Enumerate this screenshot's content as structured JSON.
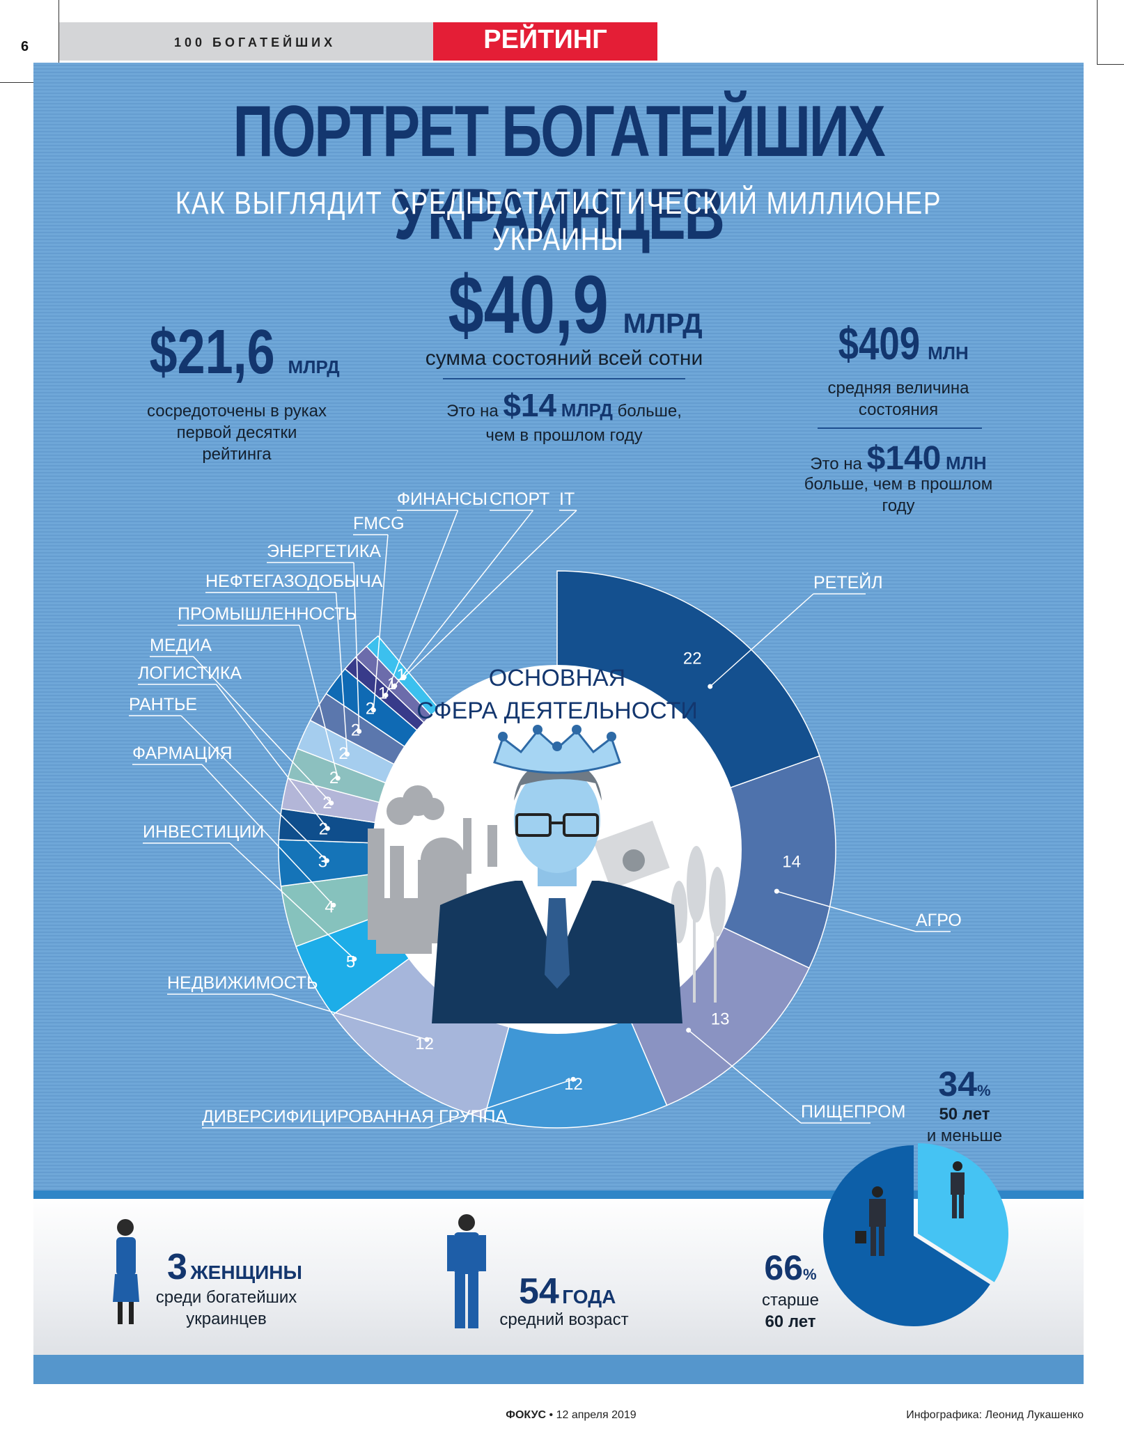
{
  "header": {
    "page_number": "6",
    "section": "100 БОГАТЕЙШИХ",
    "rubric": "РЕЙТИНГ"
  },
  "title": "ПОРТРЕТ БОГАТЕЙШИХ УКРАИНЦЕВ",
  "subtitle": "КАК ВЫГЛЯДИТ СРЕДНЕСТАТИСТИЧЕСКИЙ МИЛЛИОНЕР УКРАИНЫ",
  "stats": {
    "top10": {
      "value": "$21,6",
      "unit": "МЛРД",
      "text_lines": [
        "сосредоточены в руках",
        "первой десятки",
        "рейтинга"
      ]
    },
    "total": {
      "value": "$40,9",
      "unit": "МЛРД",
      "text": "сумма состояний всей сотни",
      "delta_prefix": "Это на",
      "delta_value": "$14",
      "delta_unit": "МЛРД",
      "delta_suffix": "больше,",
      "delta_line2": "чем в прошлом году"
    },
    "average": {
      "value": "$409",
      "unit": "МЛН",
      "text_lines": [
        "средняя величина",
        "состояния"
      ],
      "delta_prefix": "Это на",
      "delta_value": "$140",
      "delta_unit": "МЛН",
      "delta_lines": [
        "больше, чем в прошлом",
        "году"
      ]
    }
  },
  "center_label": [
    "ОСНОВНАЯ",
    "СФЕРА ДЕЯТЕЛЬНОСТИ"
  ],
  "chart_data": [
    {
      "type": "pie",
      "title": "ОСНОВНАЯ СФЕРА ДЕЯТЕЛЬНОСТИ",
      "categories": [
        "РЕТЕЙЛ",
        "АГРО",
        "ПИЩЕПРОМ",
        "ДИВЕРСИФИЦИРОВАННАЯ ГРУППА",
        "НЕДВИЖИМОСТЬ",
        "ИНВЕСТИЦИИ",
        "ФАРМАЦИЯ",
        "РАНТЬЕ",
        "ЛОГИСТИКА",
        "МЕДИА",
        "ПРОМЫШЛЕННОСТЬ",
        "НЕФТЕГАЗОДОБЫЧА",
        "ЭНЕРГЕТИКА",
        "FMCG",
        "ФИНАНСЫ",
        "СПОРТ",
        "IT"
      ],
      "values": [
        22,
        14,
        13,
        12,
        12,
        5,
        4,
        3,
        2,
        2,
        2,
        2,
        2,
        2,
        1,
        1,
        1
      ],
      "colors": [
        "#14508f",
        "#4e72ac",
        "#8a93c2",
        "#3f97d6",
        "#a6b6db",
        "#1dade8",
        "#86c2bd",
        "#1574b8",
        "#0f4e8c",
        "#b3b6d8",
        "#8cc0bf",
        "#a5cdee",
        "#5b77ad",
        "#0f6ab4",
        "#383b8a",
        "#6c6cab",
        "#3cc0ee"
      ],
      "ring": "donut"
    },
    {
      "type": "pie",
      "title": "",
      "categories": [
        "старше 60 лет",
        "50 лет и меньше"
      ],
      "values": [
        66,
        34
      ],
      "colors": [
        "#0d5fa8",
        "#45c3f3"
      ]
    }
  ],
  "age_young": {
    "pct": "34",
    "pct_sign": "%",
    "line1": "50 лет",
    "line2": "и меньше"
  },
  "age_old": {
    "pct": "66",
    "pct_sign": "%",
    "line1": "старше",
    "line2": "60 лет"
  },
  "women": {
    "number": "3",
    "word": "ЖЕНЩИНЫ",
    "line1": "среди богатейших",
    "line2": "украинцев"
  },
  "age": {
    "number": "54",
    "word": "ГОДА",
    "line1": "средний возраст"
  },
  "footer": {
    "brand": "ФОКУС",
    "sep": "•",
    "date": "12 апреля 2019",
    "credit": "Инфографика: Леонид Лукашенко"
  }
}
